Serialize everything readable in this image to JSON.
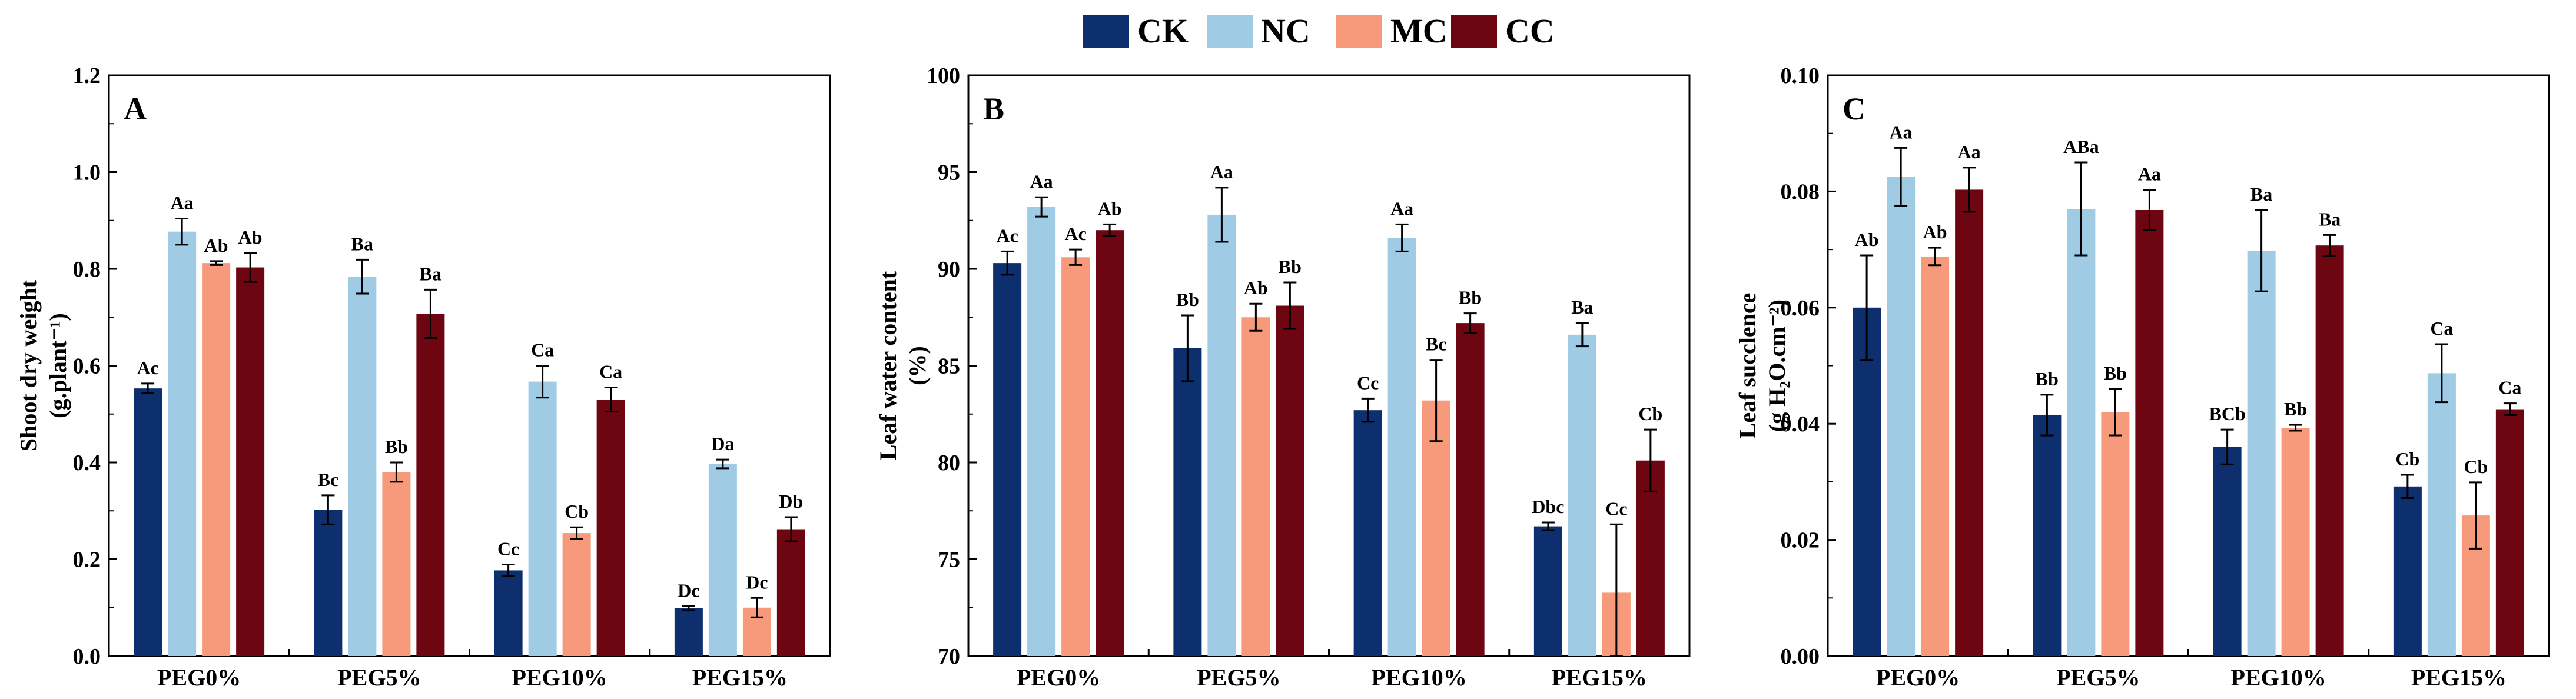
{
  "legend": {
    "items": [
      {
        "label": "CK",
        "color": "#0e2f6e"
      },
      {
        "label": "NC",
        "color": "#9fcce4"
      },
      {
        "label": "MC",
        "color": "#f79a7c"
      },
      {
        "label": "CC",
        "color": "#6e0612"
      }
    ]
  },
  "chart_data": [
    {
      "type": "bar",
      "panel_label": "A",
      "ylabel_line1": "Shoot dry weight",
      "ylabel_line2": "(g.plant⁻¹)",
      "categories": [
        "PEG0%",
        "PEG5%",
        "PEG10%",
        "PEG15%"
      ],
      "ylim": [
        0,
        1.2
      ],
      "yticks": [
        "0.0",
        "0.2",
        "0.4",
        "0.6",
        "0.8",
        "1.0",
        "1.2"
      ],
      "series": [
        {
          "name": "CK",
          "values": [
            0.553,
            0.302,
            0.177,
            0.099
          ],
          "errors": [
            0.01,
            0.03,
            0.012,
            0.004
          ],
          "labels": [
            "Ac",
            "Bc",
            "Cc",
            "Dc"
          ]
        },
        {
          "name": "NC",
          "values": [
            0.877,
            0.784,
            0.567,
            0.397
          ],
          "errors": [
            0.027,
            0.035,
            0.033,
            0.009
          ],
          "labels": [
            "Aa",
            "Ba",
            "Ca",
            "Da"
          ]
        },
        {
          "name": "MC",
          "values": [
            0.812,
            0.38,
            0.254,
            0.1
          ],
          "errors": [
            0.004,
            0.02,
            0.012,
            0.02
          ],
          "labels": [
            "Ab",
            "Bb",
            "Cb",
            "Dc"
          ]
        },
        {
          "name": "CC",
          "values": [
            0.803,
            0.707,
            0.53,
            0.262
          ],
          "errors": [
            0.03,
            0.05,
            0.025,
            0.025
          ],
          "labels": [
            "Ab",
            "Ba",
            "Ca",
            "Db"
          ]
        }
      ]
    },
    {
      "type": "bar",
      "panel_label": "B",
      "ylabel_line1": "Leaf water content",
      "ylabel_line2": "(%)",
      "categories": [
        "PEG0%",
        "PEG5%",
        "PEG10%",
        "PEG15%"
      ],
      "ylim": [
        70,
        100
      ],
      "yticks": [
        "70",
        "75",
        "80",
        "85",
        "90",
        "95",
        "100"
      ],
      "series": [
        {
          "name": "CK",
          "values": [
            90.3,
            85.9,
            82.7,
            76.7
          ],
          "errors": [
            0.6,
            1.7,
            0.6,
            0.2
          ],
          "labels": [
            "Ac",
            "Bb",
            "Cc",
            "Dbc"
          ]
        },
        {
          "name": "NC",
          "values": [
            93.2,
            92.8,
            91.6,
            86.6
          ],
          "errors": [
            0.5,
            1.4,
            0.7,
            0.6
          ],
          "labels": [
            "Aa",
            "Aa",
            "Aa",
            "Ba"
          ]
        },
        {
          "name": "MC",
          "values": [
            90.6,
            87.5,
            83.2,
            73.3
          ],
          "errors": [
            0.4,
            0.7,
            2.1,
            3.5
          ],
          "labels": [
            "Ac",
            "Ab",
            "Bc",
            "Cc"
          ]
        },
        {
          "name": "CC",
          "values": [
            92.0,
            88.1,
            87.2,
            80.1
          ],
          "errors": [
            0.3,
            1.2,
            0.5,
            1.6
          ],
          "labels": [
            "Ab",
            "Bb",
            "Bb",
            "Cb"
          ]
        }
      ]
    },
    {
      "type": "bar",
      "panel_label": "C",
      "ylabel_line1": "Leaf succlence",
      "ylabel_line2": "(g H₂O.cm⁻²)",
      "categories": [
        "PEG0%",
        "PEG5%",
        "PEG10%",
        "PEG15%"
      ],
      "ylim": [
        0,
        0.1
      ],
      "yticks": [
        "0.00",
        "0.02",
        "0.04",
        "0.06",
        "0.08",
        "0.10"
      ],
      "series": [
        {
          "name": "CK",
          "values": [
            0.06,
            0.0415,
            0.036,
            0.0292
          ],
          "errors": [
            0.009,
            0.0035,
            0.003,
            0.002
          ],
          "labels": [
            "Ab",
            "Bb",
            "BCb",
            "Cb"
          ]
        },
        {
          "name": "NC",
          "values": [
            0.0825,
            0.077,
            0.0698,
            0.0487
          ],
          "errors": [
            0.005,
            0.008,
            0.007,
            0.005
          ],
          "labels": [
            "Aa",
            "ABa",
            "Ba",
            "Ca"
          ]
        },
        {
          "name": "MC",
          "values": [
            0.0688,
            0.042,
            0.0393,
            0.0242
          ],
          "errors": [
            0.0015,
            0.004,
            0.0005,
            0.0057
          ],
          "labels": [
            "Ab",
            "Bb",
            "Bb",
            "Cb"
          ]
        },
        {
          "name": "CC",
          "values": [
            0.0803,
            0.0768,
            0.0707,
            0.0425
          ],
          "errors": [
            0.0038,
            0.0035,
            0.0018,
            0.001
          ],
          "labels": [
            "Aa",
            "Aa",
            "Ba",
            "Ca"
          ]
        }
      ]
    }
  ]
}
